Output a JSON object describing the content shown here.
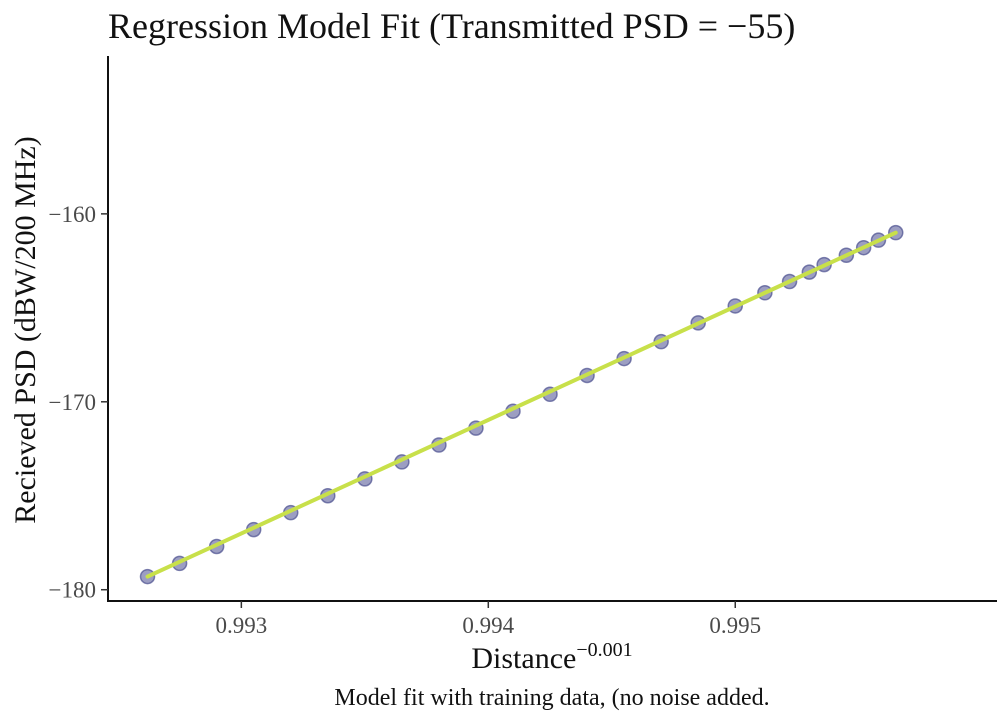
{
  "chart_data": {
    "type": "scatter",
    "title": "Regression Model Fit (Transmitted PSD = −55)",
    "xlabel": "Distance",
    "xlabel_superscript": "−0.001",
    "ylabel": "Recieved PSD (dBW/200 MHz)",
    "caption": "Model fit with training data, (no noise added.",
    "xlim": [
      0.99246,
      0.99606
    ],
    "ylim": [
      -180.6,
      -151.6
    ],
    "x_ticks": [
      0.993,
      0.994,
      0.995
    ],
    "x_tick_labels": [
      "0.993",
      "0.994",
      "0.995"
    ],
    "y_ticks": [
      -180,
      -170,
      -160
    ],
    "y_tick_labels": [
      "−180",
      "−170",
      "−160"
    ],
    "grid": false,
    "legend": "none",
    "series": [
      {
        "kind": "points",
        "color": "#4a4e8f",
        "x": [
          0.99262,
          0.99275,
          0.9929,
          0.99305,
          0.9932,
          0.99335,
          0.9935,
          0.99365,
          0.9938,
          0.99395,
          0.9941,
          0.99425,
          0.9944,
          0.99455,
          0.9947,
          0.99485,
          0.995,
          0.99512,
          0.99522,
          0.9953,
          0.99536,
          0.99545,
          0.99552,
          0.99558,
          0.99565
        ],
        "y": [
          -179.3,
          -178.6,
          -177.7,
          -176.8,
          -175.9,
          -175.0,
          -174.1,
          -173.2,
          -172.3,
          -171.4,
          -170.5,
          -169.6,
          -168.6,
          -167.7,
          -166.8,
          -165.8,
          -164.9,
          -164.2,
          -163.6,
          -163.1,
          -162.7,
          -162.2,
          -161.8,
          -161.4,
          -161.0
        ]
      },
      {
        "kind": "fit-line",
        "color": "#c8e04a",
        "x": [
          0.99262,
          0.99565
        ],
        "y": [
          -179.3,
          -161.0
        ]
      }
    ]
  }
}
